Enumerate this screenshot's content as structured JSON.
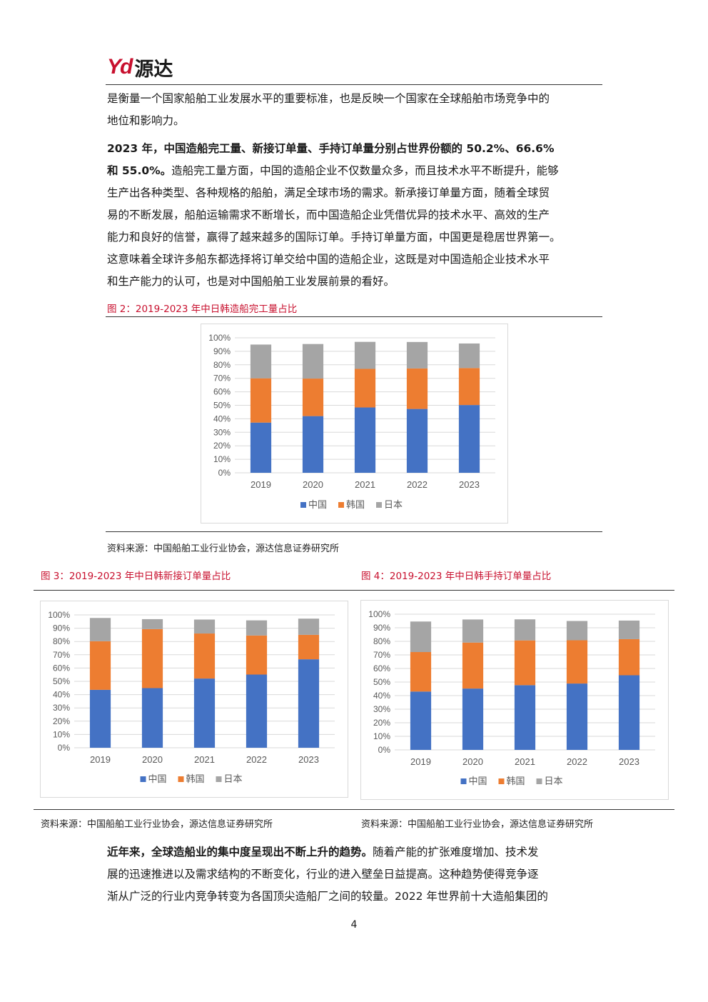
{
  "header": {
    "logo_mark": "Yd",
    "logo_text": "源达"
  },
  "intro": {
    "lines": [
      "是衡量一个国家船舶工业发展水平的重要标准，也是反映一个国家在全球船舶市场竞争中的",
      "地位和影响力。"
    ]
  },
  "para2": {
    "bold_line1": "2023 年，中国造船完工量、新接订单量、手持订单量分别占世界份额的 50.2%、66.6%",
    "bold_line2_start": "和 55.0%。",
    "line2_rest": "造船完工量方面，中国的造船企业不仅数量众多，而且技术水平不断提升，能够",
    "lines": [
      "生产出各种类型、各种规格的船舶，满足全球市场的需求。新承接订单量方面，随着全球贸",
      "易的不断发展，船舶运输需求不断增长，而中国造船企业凭借优异的技术水平、高效的生产",
      "能力和良好的信誉，赢得了越来越多的国际订单。手持订单量方面，中国更是稳居世界第一。",
      "这意味着全球许多船东都选择将订单交给中国的造船企业，这既是对中国造船企业技术水平",
      "和生产能力的认可，也是对中国船舶工业发展前景的看好。"
    ]
  },
  "fig2": {
    "title": "图 2：2019-2023 年中日韩造船完工量占比",
    "source": "资料来源：中国船舶工业行业协会，源达信息证券研究所"
  },
  "fig3": {
    "title": "图 3：2019-2023 年中日韩新接订单量占比",
    "source": "资料来源：中国船舶工业行业协会，源达信息证券研究所"
  },
  "fig4": {
    "title": "图 4：2019-2023 年中日韩手持订单量占比",
    "source": "资料来源：中国船舶工业行业协会，源达信息证券研究所"
  },
  "closing": {
    "bold_start": "近年来，全球造船业的集中度呈现出不断上升的趋势。",
    "line1_rest": "随着产能的扩张难度增加、技术发",
    "lines": [
      "展的迅速推进以及需求结构的不断变化，行业的进入壁垒日益提高。这种趋势使得竞争逐",
      "渐从广泛的行业内竞争转变为各国顶尖造船厂之间的较量。2022 年世界前十大造船集团的"
    ]
  },
  "page_number": "4",
  "colors": {
    "china": "#4472c4",
    "korea": "#ed7d31",
    "japan": "#a5a5a5",
    "title_red": "#c8102e"
  },
  "chart_data": [
    {
      "type": "bar",
      "stacked": true,
      "categories": [
        "2019",
        "2020",
        "2021",
        "2022",
        "2023"
      ],
      "series": [
        {
          "name": "中国",
          "values": [
            37.2,
            42.0,
            48.4,
            47.3,
            50.2
          ]
        },
        {
          "name": "韩国",
          "values": [
            32.8,
            27.8,
            28.6,
            30.0,
            27.4
          ]
        },
        {
          "name": "日本",
          "values": [
            25.0,
            25.6,
            20.0,
            19.6,
            18.2
          ]
        }
      ],
      "yticks": [
        "0%",
        "10%",
        "20%",
        "30%",
        "40%",
        "50%",
        "60%",
        "70%",
        "80%",
        "90%",
        "100%"
      ],
      "ylim": [
        0,
        100
      ],
      "legend": "bottom"
    },
    {
      "type": "bar",
      "stacked": true,
      "categories": [
        "2019",
        "2020",
        "2021",
        "2022",
        "2023"
      ],
      "series": [
        {
          "name": "中国",
          "values": [
            43.6,
            44.9,
            52.1,
            55.1,
            66.6
          ]
        },
        {
          "name": "韩国",
          "values": [
            36.6,
            44.4,
            33.9,
            29.4,
            18.4
          ]
        },
        {
          "name": "日本",
          "values": [
            17.5,
            7.5,
            10.5,
            11.4,
            12.2
          ]
        }
      ],
      "yticks": [
        "0%",
        "10%",
        "20%",
        "30%",
        "40%",
        "50%",
        "60%",
        "70%",
        "80%",
        "90%",
        "100%"
      ],
      "ylim": [
        0,
        100
      ],
      "legend": "bottom"
    },
    {
      "type": "bar",
      "stacked": true,
      "categories": [
        "2019",
        "2020",
        "2021",
        "2022",
        "2023"
      ],
      "series": [
        {
          "name": "中国",
          "values": [
            43.0,
            45.2,
            47.7,
            48.9,
            55.0
          ]
        },
        {
          "name": "韩国",
          "values": [
            29.1,
            33.9,
            33.0,
            31.9,
            26.6
          ]
        },
        {
          "name": "日本",
          "values": [
            22.5,
            17.0,
            15.5,
            14.2,
            13.7
          ]
        }
      ],
      "yticks": [
        "0%",
        "10%",
        "20%",
        "30%",
        "40%",
        "50%",
        "60%",
        "70%",
        "80%",
        "90%",
        "100%"
      ],
      "ylim": [
        0,
        100
      ],
      "legend": "bottom"
    }
  ]
}
